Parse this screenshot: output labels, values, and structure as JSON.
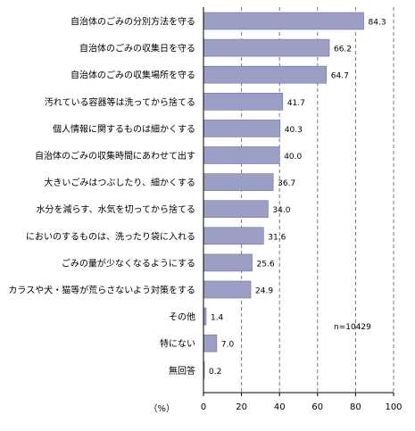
{
  "chart_data": {
    "type": "bar",
    "orientation": "horizontal",
    "categories": [
      "自治体のごみの分別方法を守る",
      "自治体のごみの収集日を守る",
      "自治体のごみの収集場所を守る",
      "汚れている容器等は洗ってから捨てる",
      "個人情報に関するものは細かくする",
      "自治体のごみの収集時間にあわせて出す",
      "大きいごみはつぶしたり、細かくする",
      "水分を減らす、水気を切ってから捨てる",
      "においのするものは、洗ったり袋に入れる",
      "ごみの量が少なくなるようにする",
      "カラスや犬・猫等が荒らさないよう対策をする",
      "その他",
      "特にない",
      "無回答"
    ],
    "values": [
      84.3,
      66.2,
      64.7,
      41.7,
      40.3,
      40.0,
      36.7,
      34.0,
      31.6,
      25.6,
      24.9,
      1.4,
      7.0,
      0.2
    ],
    "value_labels": [
      "84.3",
      "66.2",
      "64.7",
      "41.7",
      "40.3",
      "40.0",
      "36.7",
      "34.0",
      "31.6",
      "25.6",
      "24.9",
      "1.4",
      "7.0",
      "0.2"
    ],
    "xlim": [
      0,
      100
    ],
    "xticks": [
      "0",
      "20",
      "40",
      "60",
      "80",
      "100"
    ],
    "unit_label": "（%）",
    "annotation": "n=10429",
    "grid": "vertical dashed",
    "bar_color": "#9b9fc6",
    "bar_edge_color": "#6f739e"
  }
}
